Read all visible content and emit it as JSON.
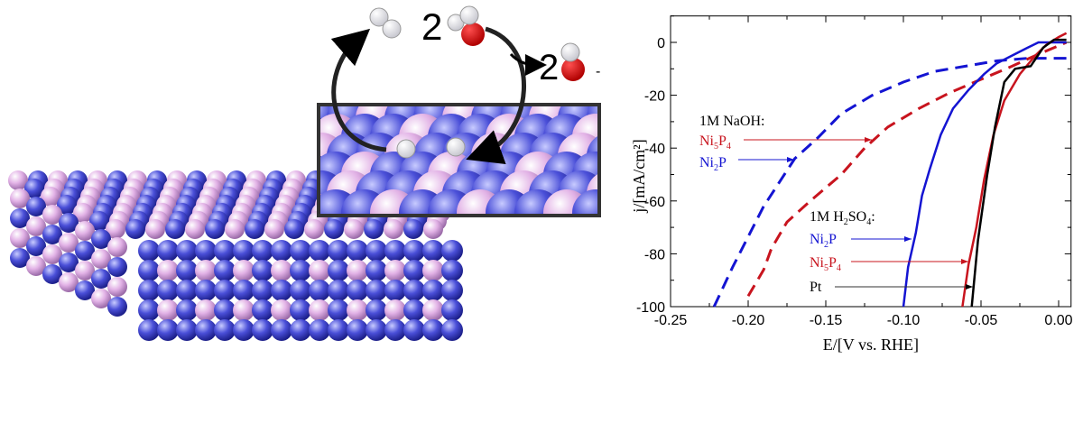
{
  "illustration": {
    "reactant_coefficient": "2",
    "product_coefficient": "2",
    "product_charge": "-",
    "colors": {
      "hydrogen": "#e6e6ec",
      "oxygen": "#d40000",
      "nickel": "#4a4fd8",
      "phosphorus": "#e2b2e6"
    }
  },
  "chart_data": {
    "type": "line",
    "xlabel": "E/[V vs. RHE]",
    "ylabel": "j/[mA/cm²]",
    "xlim": [
      -0.25,
      0.008
    ],
    "ylim": [
      -100,
      10
    ],
    "xticks": [
      "-0.25",
      "-0.20",
      "-0.15",
      "-0.10",
      "-0.05",
      "0.00"
    ],
    "yticks": [
      "0",
      "-20",
      "-40",
      "-60",
      "-80",
      "-100"
    ],
    "grid": false,
    "annotations": {
      "naoh_header": "1M NaOH:",
      "naoh_ni5p4": {
        "base": "Ni",
        "sub1": "5",
        "mid": "P",
        "sub2": "4"
      },
      "naoh_ni2p": {
        "base": "Ni",
        "sub1": "2",
        "mid": "P"
      },
      "acid_header": {
        "base": "1M H",
        "sub1": "2",
        "mid": "SO",
        "sub2": "4",
        "end": ":"
      },
      "acid_ni2p": {
        "base": "Ni",
        "sub1": "2",
        "mid": "P"
      },
      "acid_ni5p4": {
        "base": "Ni",
        "sub1": "5",
        "mid": "P",
        "sub2": "4"
      },
      "acid_pt": "Pt"
    },
    "series": [
      {
        "color": "#1414d2",
        "dash": true,
        "x": [
          -0.222,
          -0.21,
          -0.19,
          -0.17,
          -0.155,
          -0.14,
          -0.12,
          -0.1,
          -0.08,
          -0.06,
          -0.04,
          -0.02,
          0.005
        ],
        "y": [
          -100,
          -85,
          -62,
          -44,
          -36,
          -27,
          -20,
          -15,
          -11,
          -9,
          -7,
          -6,
          -6
        ]
      },
      {
        "color": "#c8141e",
        "dash": true,
        "x": [
          -0.2,
          -0.19,
          -0.185,
          -0.175,
          -0.16,
          -0.14,
          -0.125,
          -0.11,
          -0.09,
          -0.07,
          -0.05,
          -0.03,
          -0.015,
          0.005
        ],
        "y": [
          -96,
          -86,
          -78,
          -68,
          -60,
          -50,
          -40,
          -32,
          -25,
          -19,
          -14,
          -9,
          -5,
          0
        ]
      },
      {
        "color": "#1414d2",
        "dash": false,
        "x": [
          -0.1,
          -0.097,
          -0.092,
          -0.088,
          -0.083,
          -0.076,
          -0.068,
          -0.058,
          -0.048,
          -0.04,
          -0.03,
          -0.02,
          -0.013,
          0.005
        ],
        "y": [
          -100,
          -85,
          -72,
          -58,
          -48,
          -35,
          -25,
          -18,
          -12,
          -8,
          -5,
          -2,
          0,
          0
        ]
      },
      {
        "color": "#c8141e",
        "dash": false,
        "x": [
          -0.062,
          -0.058,
          -0.053,
          -0.048,
          -0.042,
          -0.035,
          -0.025,
          -0.015,
          -0.008,
          0,
          0.005
        ],
        "y": [
          -100,
          -84,
          -70,
          -52,
          -35,
          -22,
          -12,
          -5,
          -1,
          2,
          3.5
        ]
      },
      {
        "color": "#000000",
        "dash": false,
        "x": [
          -0.056,
          -0.052,
          -0.046,
          -0.041,
          -0.035,
          -0.028,
          -0.018,
          -0.01,
          -0.003,
          0.005
        ],
        "y": [
          -100,
          -75,
          -50,
          -32,
          -15,
          -10,
          -9,
          -2,
          1,
          1
        ]
      }
    ]
  }
}
